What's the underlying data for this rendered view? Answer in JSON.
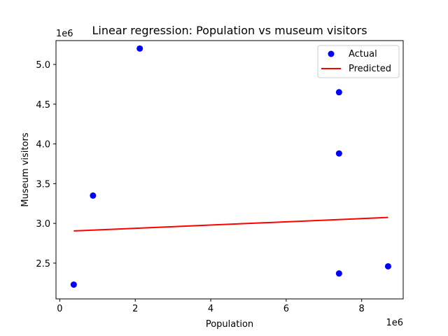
{
  "chart_data": {
    "type": "scatter",
    "title": "Linear regression: Population vs museum visitors",
    "xlabel": "Population",
    "ylabel": "Museum visitors",
    "x_offset_label": "1e6",
    "y_offset_label": "1e6",
    "xlim": [
      -100000,
      9100000
    ],
    "ylim": [
      2050000,
      5300000
    ],
    "x_ticks": [
      0,
      2000000,
      4000000,
      6000000,
      8000000
    ],
    "x_tick_labels": [
      "0",
      "2",
      "4",
      "6",
      "8"
    ],
    "y_ticks": [
      2500000,
      3000000,
      3500000,
      4000000,
      4500000,
      5000000
    ],
    "y_tick_labels": [
      "2.5",
      "3.0",
      "3.5",
      "4.0",
      "4.5",
      "5.0"
    ],
    "grid": false,
    "legend_position": "top-right",
    "series": [
      {
        "name": "Actual",
        "kind": "scatter",
        "color": "#0000ff",
        "points": [
          {
            "x": 370000,
            "y": 2230000
          },
          {
            "x": 880000,
            "y": 3350000
          },
          {
            "x": 2120000,
            "y": 5200000
          },
          {
            "x": 7400000,
            "y": 4650000
          },
          {
            "x": 7400000,
            "y": 3880000
          },
          {
            "x": 7400000,
            "y": 2370000
          },
          {
            "x": 8700000,
            "y": 2460000
          }
        ]
      },
      {
        "name": "Predicted",
        "kind": "line",
        "color": "#ff0000",
        "points": [
          {
            "x": 370000,
            "y": 2905000
          },
          {
            "x": 8700000,
            "y": 3075000
          }
        ]
      }
    ]
  }
}
